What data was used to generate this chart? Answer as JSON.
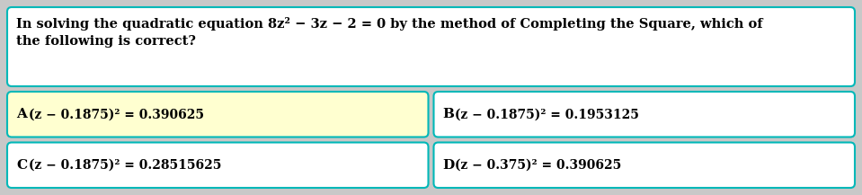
{
  "bg_color": "#c8c8c8",
  "box_bg": "#ffffff",
  "box_highlight": "#ffffd0",
  "box_border": "#00b8b8",
  "border_lw": 1.5,
  "question_line1": "In solving the quadratic equation 8z² − 3z − 2 = 0 by the method of Completing the Square, which of",
  "question_line2": "the following is correct?",
  "opt_A_label": "A",
  "opt_A_body": "(z − 0.1875)² = 0.390625",
  "opt_B_label": "B",
  "opt_B_body": "(z − 0.1875)² = 0.1953125",
  "opt_C_label": "C",
  "opt_C_body": "(z − 0.1875)² = 0.28515625",
  "opt_D_label": "D",
  "opt_D_body": "(z − 0.375)² = 0.390625",
  "q_fontsize": 10.5,
  "opt_fontsize": 10.0,
  "label_fontsize": 11.0,
  "fig_w": 9.59,
  "fig_h": 2.17,
  "dpi": 100
}
